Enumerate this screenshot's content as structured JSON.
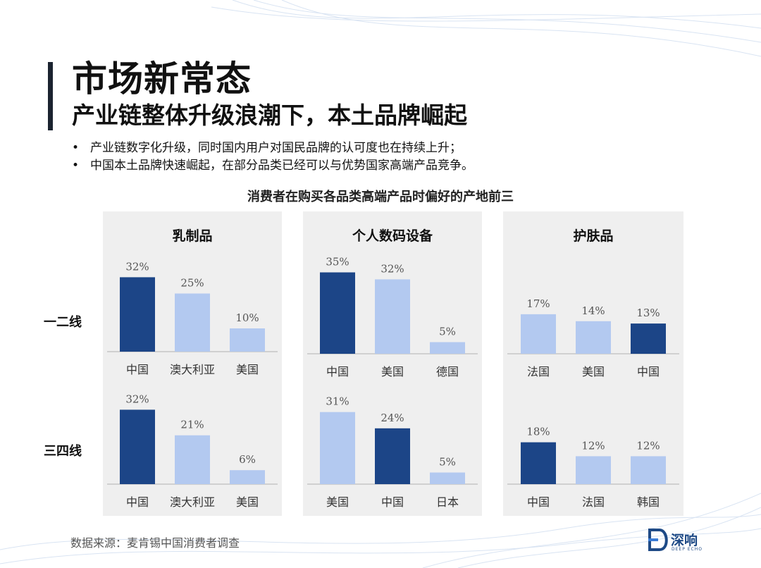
{
  "header": {
    "title": "市场新常态",
    "subtitle": "产业链整体升级浪潮下，本土品牌崛起"
  },
  "bullets": [
    "产业链数字化升级，同时国内用户对国民品牌的认可度也在持续上升；",
    "中国本土品牌快速崛起，在部分品类已经可以与优势国家高端产品竞争。"
  ],
  "chart_data": {
    "type": "bar",
    "title": "消费者在购买各品类高端产品时偏好的产地前三",
    "row_labels": [
      "一二线",
      "三四线"
    ],
    "colors": {
      "highlight": "#1c4587",
      "normal": "#b3c9f0",
      "baseline": "#b0b0b0",
      "panel_bg": "#efefef"
    },
    "unit": "%",
    "panels": [
      {
        "title": "乳制品",
        "rows": [
          {
            "categories": [
              "中国",
              "澳大利亚",
              "美国"
            ],
            "values": [
              32,
              25,
              10
            ],
            "highlight": [
              true,
              false,
              false
            ]
          },
          {
            "categories": [
              "中国",
              "澳大利亚",
              "美国"
            ],
            "values": [
              32,
              21,
              6
            ],
            "highlight": [
              true,
              false,
              false
            ]
          }
        ]
      },
      {
        "title": "个人数码设备",
        "rows": [
          {
            "categories": [
              "中国",
              "美国",
              "德国"
            ],
            "values": [
              35,
              32,
              5
            ],
            "highlight": [
              true,
              false,
              false
            ]
          },
          {
            "categories": [
              "美国",
              "中国",
              "日本"
            ],
            "values": [
              31,
              24,
              5
            ],
            "highlight": [
              false,
              true,
              false
            ]
          }
        ]
      },
      {
        "title": "护肤品",
        "rows": [
          {
            "categories": [
              "法国",
              "美国",
              "中国"
            ],
            "values": [
              17,
              14,
              13
            ],
            "highlight": [
              false,
              false,
              true
            ]
          },
          {
            "categories": [
              "中国",
              "法国",
              "韩国"
            ],
            "values": [
              18,
              12,
              12
            ],
            "highlight": [
              true,
              false,
              false
            ]
          }
        ]
      }
    ]
  },
  "footer": {
    "source": "数据来源：麦肯锡中国消费者调查"
  },
  "logo": {
    "text": "深响",
    "subtext": "DEEP ECHO"
  }
}
